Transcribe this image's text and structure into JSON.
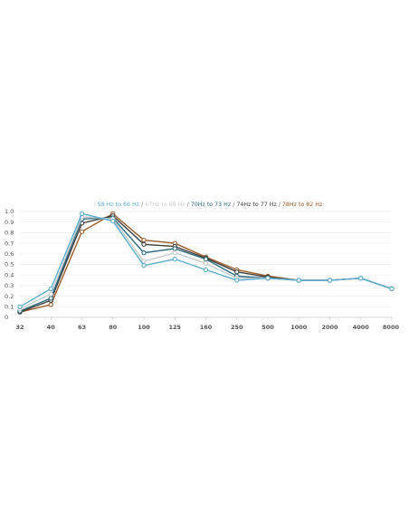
{
  "chart_data": {
    "type": "line",
    "title": "",
    "xlabel": "",
    "ylabel": "",
    "categories": [
      "32",
      "40",
      "63",
      "80",
      "100",
      "125",
      "160",
      "250",
      "500",
      "1000",
      "2000",
      "4000",
      "8000"
    ],
    "ylim": [
      0,
      1.0
    ],
    "yticks": [
      "0",
      "0.1",
      "0.2",
      "0.3",
      "0.4",
      "0.5",
      "0.6",
      "0.7",
      "0.8",
      "0.9",
      "1.0"
    ],
    "grid": true,
    "legend_position": "top-center",
    "legend_separator": " / ",
    "series": [
      {
        "name": "58 Hz to 66 Hz",
        "color": "#5aaed0",
        "values": [
          0.1,
          0.27,
          0.98,
          0.91,
          0.49,
          0.55,
          0.45,
          0.35,
          0.37,
          0.35,
          0.35,
          0.37,
          0.27
        ]
      },
      {
        "name": "67Hz to 69 Hz",
        "color": "#c4c9cc",
        "values": [
          0.08,
          0.22,
          0.95,
          0.93,
          0.53,
          0.61,
          0.51,
          0.37,
          0.37,
          0.35,
          0.35,
          0.37,
          0.27
        ]
      },
      {
        "name": "70Hz to 73 Hz",
        "color": "#2c6a7d",
        "values": [
          0.06,
          0.18,
          0.93,
          0.94,
          0.61,
          0.65,
          0.55,
          0.39,
          0.37,
          0.35,
          0.35,
          0.37,
          0.27
        ]
      },
      {
        "name": "74Hz to 77 Hz",
        "color": "#3d3d3d",
        "values": [
          0.05,
          0.16,
          0.89,
          0.96,
          0.69,
          0.67,
          0.56,
          0.43,
          0.38,
          0.35,
          0.35,
          0.37,
          0.27
        ]
      },
      {
        "name": "78Hz to 82 Hz",
        "color": "#9a5a28",
        "values": [
          0.05,
          0.12,
          0.81,
          0.98,
          0.73,
          0.7,
          0.57,
          0.45,
          0.39,
          0.35,
          0.35,
          0.37,
          0.27
        ]
      }
    ],
    "colors": {
      "grid": "#eeeeee",
      "axis": "#cccccc"
    }
  }
}
